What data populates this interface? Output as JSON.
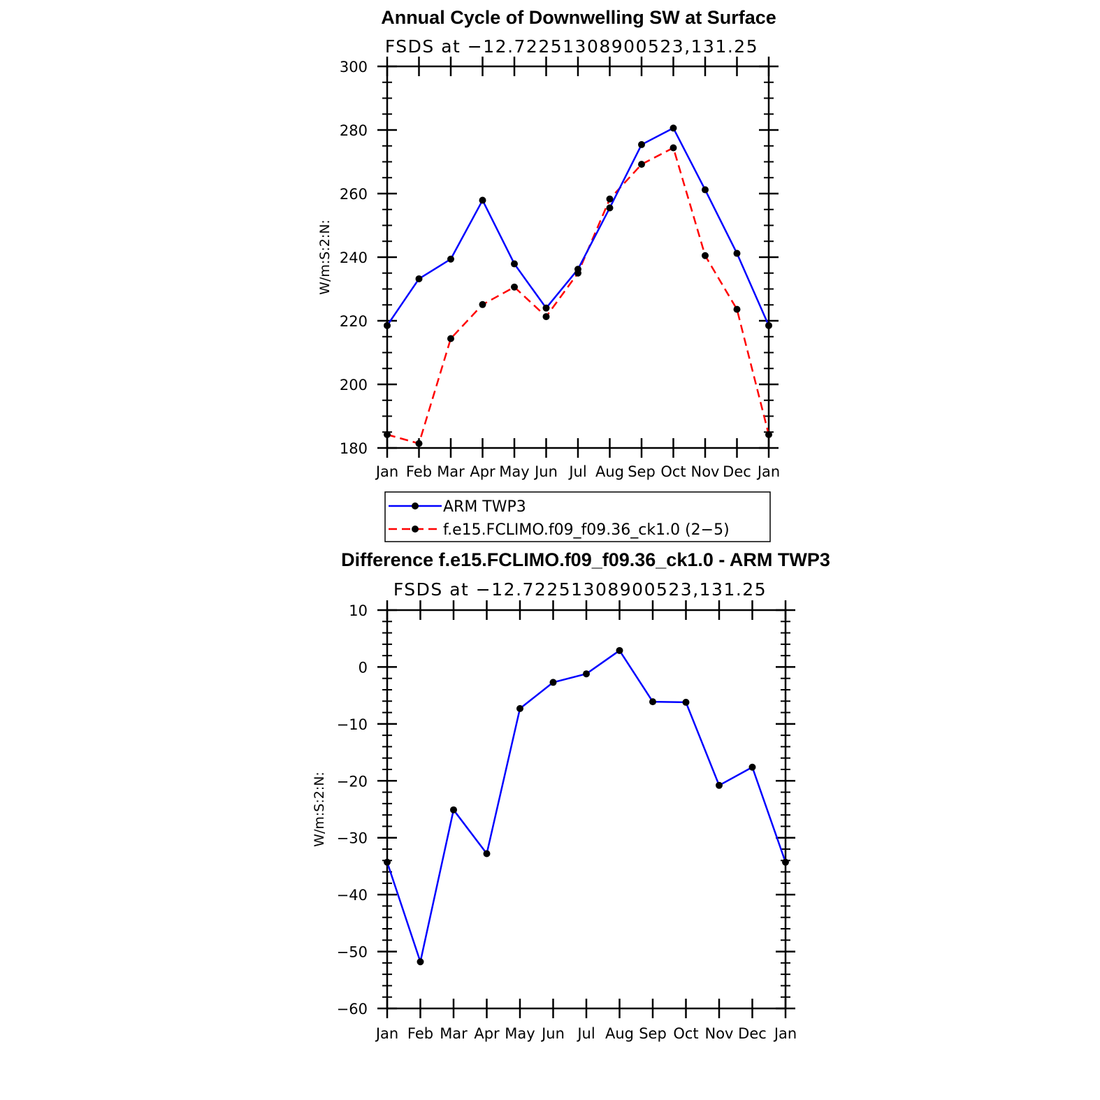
{
  "chart_data": [
    {
      "type": "line",
      "title": "Annual Cycle of Downwelling SW at Surface",
      "subtitle": "FSDS at −12.72251308900523,131.25",
      "ylabel": "W/m:S:2:N:",
      "categories": [
        "Jan",
        "Feb",
        "Mar",
        "Apr",
        "May",
        "Jun",
        "Jul",
        "Aug",
        "Sep",
        "Oct",
        "Nov",
        "Dec",
        "Jan"
      ],
      "ylim": [
        180,
        300
      ],
      "yticks": [
        "180",
        "200",
        "220",
        "240",
        "260",
        "280",
        "300"
      ],
      "grid": false,
      "legend_placement": "below",
      "series": [
        {
          "name": "ARM TWP3",
          "color": "#0000ff",
          "dash": "solid",
          "values": [
            218.5,
            233.2,
            239.4,
            257.9,
            237.9,
            224.0,
            236.2,
            255.5,
            275.4,
            280.6,
            261.2,
            241.2,
            218.5
          ]
        },
        {
          "name": "f.e15.FCLIMO.f09_f09.36_ck1.0 (2−5)",
          "color": "#ff0000",
          "dash": "dashed",
          "values": [
            184.2,
            181.4,
            214.4,
            225.1,
            230.6,
            221.3,
            235.0,
            258.3,
            269.2,
            274.4,
            240.5,
            223.6,
            184.2
          ]
        }
      ]
    },
    {
      "type": "line",
      "title": "Difference f.e15.FCLIMO.f09_f09.36_ck1.0 - ARM TWP3",
      "subtitle": "FSDS at −12.72251308900523,131.25",
      "ylabel": "W/m:S:2:N:",
      "categories": [
        "Jan",
        "Feb",
        "Mar",
        "Apr",
        "May",
        "Jun",
        "Jul",
        "Aug",
        "Sep",
        "Oct",
        "Nov",
        "Dec",
        "Jan"
      ],
      "ylim": [
        -60,
        10
      ],
      "yticks": [
        "−60",
        "−50",
        "−40",
        "−30",
        "−20",
        "−10",
        "0",
        "10"
      ],
      "grid": false,
      "series": [
        {
          "color": "#0000ff",
          "dash": "solid",
          "values": [
            -34.3,
            -51.8,
            -25.1,
            -32.8,
            -7.3,
            -2.7,
            -1.2,
            2.9,
            -6.1,
            -6.2,
            -20.8,
            -17.6,
            -34.3
          ]
        }
      ]
    }
  ]
}
